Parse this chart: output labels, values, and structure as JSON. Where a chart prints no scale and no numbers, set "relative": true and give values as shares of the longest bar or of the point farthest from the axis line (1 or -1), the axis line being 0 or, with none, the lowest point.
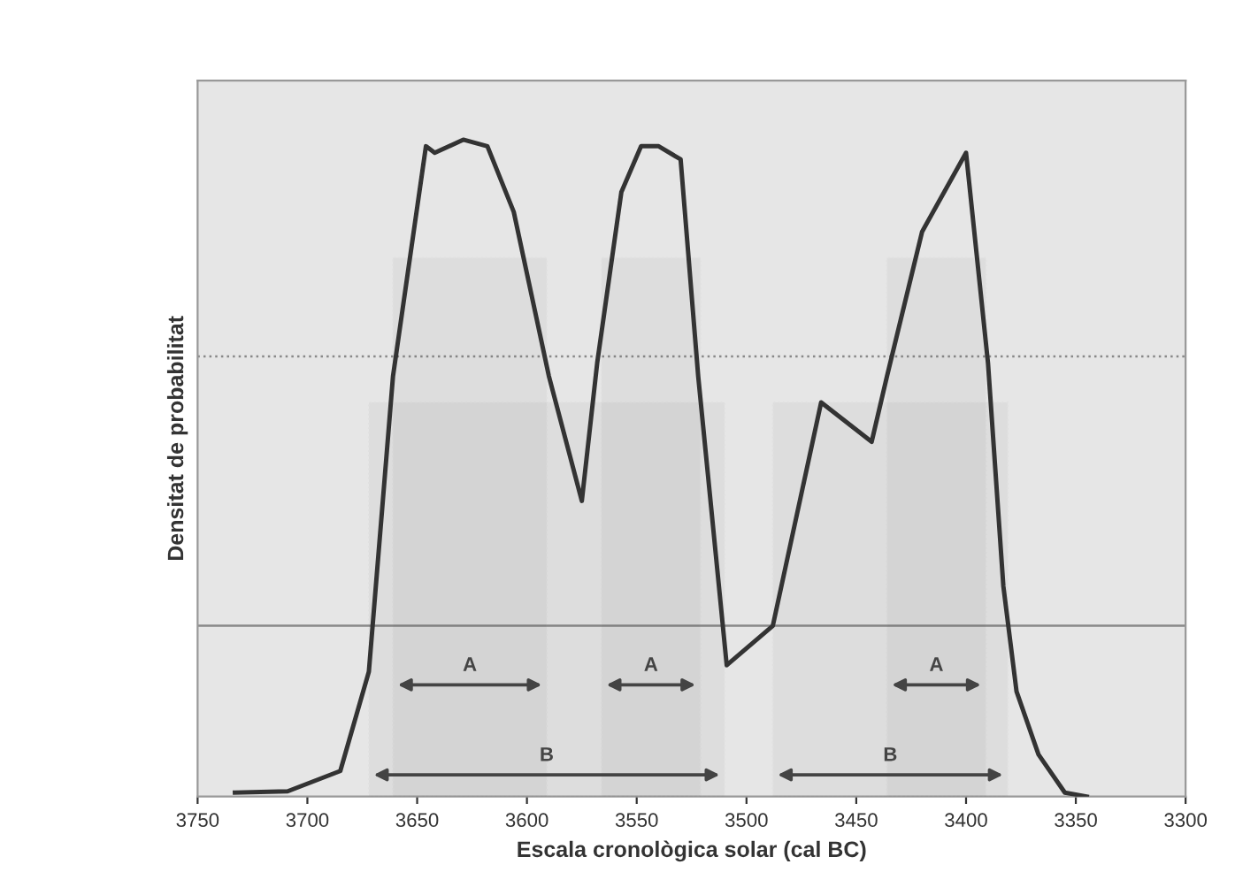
{
  "chart_data": {
    "type": "line",
    "relative": true,
    "xlabel": "Escala cronològica solar (cal BC)",
    "ylabel": "Densitat de probabilitat",
    "xlim": [
      3750,
      3300
    ],
    "xticks": [
      3750,
      3700,
      3650,
      3600,
      3550,
      3500,
      3450,
      3400,
      3350,
      3300
    ],
    "series": [
      {
        "color": "#333333",
        "x": [
          3733,
          3709,
          3685,
          3672,
          3661,
          3646,
          3642,
          3629,
          3618,
          3606,
          3590,
          3575,
          3568,
          3557,
          3548,
          3540,
          3530,
          3522,
          3509,
          3488,
          3466,
          3443,
          3436,
          3420,
          3400,
          3390,
          3383,
          3377,
          3367,
          3355,
          3345
        ],
        "values": [
          0.006,
          0.008,
          0.039,
          0.19,
          0.64,
          0.99,
          0.98,
          1.0,
          0.99,
          0.89,
          0.64,
          0.45,
          0.66,
          0.92,
          0.99,
          0.99,
          0.97,
          0.64,
          0.2,
          0.26,
          0.6,
          0.54,
          0.64,
          0.86,
          0.98,
          0.66,
          0.32,
          0.16,
          0.064,
          0.006,
          0
        ]
      }
    ],
    "ref_lines": [
      {
        "axis": "y",
        "value": 0.67,
        "color": "#888888",
        "line_style": "dotted"
      },
      {
        "axis": "y",
        "value": 0.26,
        "color": "#888888",
        "line_style": "solid"
      }
    ],
    "bands": [
      {
        "axis": "x",
        "from": 3661,
        "to": 3591,
        "label": "A",
        "color": "#444444"
      },
      {
        "axis": "x",
        "from": 3566,
        "to": 3521,
        "label": "A",
        "color": "#444444"
      },
      {
        "axis": "x",
        "from": 3436,
        "to": 3391,
        "label": "A",
        "color": "#444444"
      },
      {
        "axis": "x",
        "from": 3672,
        "to": 3510,
        "label": "B",
        "color": "#444444"
      },
      {
        "axis": "x",
        "from": 3488,
        "to": 3381,
        "label": "B",
        "color": "#444444"
      }
    ],
    "grid": false,
    "legend": false,
    "line_style": "solid",
    "marker": "none"
  }
}
